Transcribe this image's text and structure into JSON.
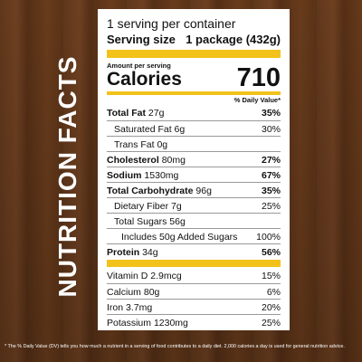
{
  "side_title": "NUTRITION FACTS",
  "label": {
    "servings": "1 serving per container",
    "serving_size_label": "Serving size",
    "serving_size_value": "1 package (432g)",
    "amount_per_serving": "Amount per serving",
    "calories_label": "Calories",
    "calories_value": "710",
    "daily_value_header": "% Daily Value*",
    "nutrients": [
      {
        "name": "Total Fat",
        "amount": "27g",
        "dv": "35%",
        "bold": true,
        "indent": 0
      },
      {
        "name": "Saturated Fat",
        "amount": "6g",
        "dv": "30%",
        "bold": false,
        "indent": 1
      },
      {
        "name": "Trans Fat",
        "amount": "0g",
        "bold": false,
        "indent": 1
      },
      {
        "name": "Cholesterol",
        "amount": "80mg",
        "dv": "27%",
        "bold": true,
        "indent": 0
      },
      {
        "name": "Sodium",
        "amount": "1530mg",
        "dv": "67%",
        "bold": true,
        "indent": 0
      },
      {
        "name": "Total Carbohydrate",
        "amount": "96g",
        "dv": "35%",
        "bold": true,
        "indent": 0
      },
      {
        "name": "Dietary Fiber",
        "amount": "7g",
        "dv": "25%",
        "bold": false,
        "indent": 1
      },
      {
        "name": "Total Sugars",
        "amount": "56g",
        "bold": false,
        "indent": 1
      },
      {
        "name": "Includes 50g Added Sugars",
        "dv": "100%",
        "bold": false,
        "indent": 2
      },
      {
        "name": "Protein",
        "amount": "34g",
        "dv": "56%",
        "bold": true,
        "indent": 0
      }
    ],
    "vitamins": [
      {
        "name": "Vitamin D",
        "amount": "2.9mcg",
        "dv": "15%"
      },
      {
        "name": "Calcium",
        "amount": "80g",
        "dv": "6%"
      },
      {
        "name": "Iron",
        "amount": "3.7mg",
        "dv": "20%"
      },
      {
        "name": "Potassium",
        "amount": "1230mg",
        "dv": "25%"
      }
    ]
  },
  "footnote": "* The % Daily Value (DV) tells you how much a nutrient in a serving of food contributes to a daily diet. 2,000 calories a day is used for general nutrition advice."
}
